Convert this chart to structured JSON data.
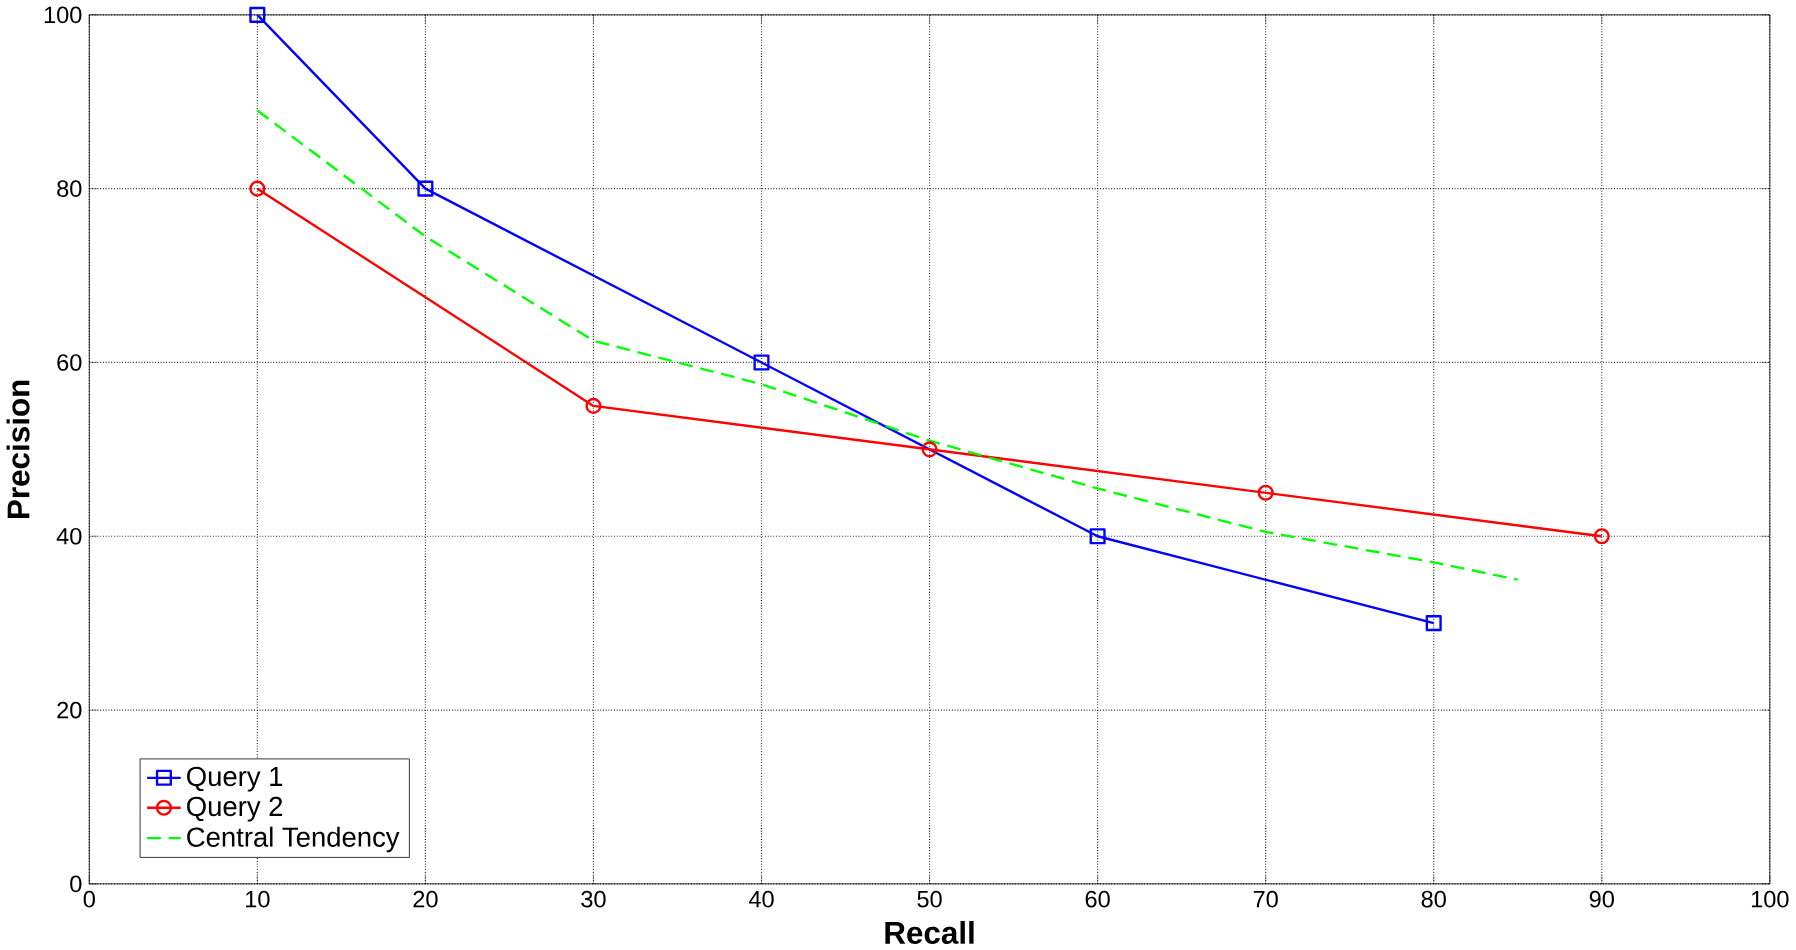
{
  "chart_data": {
    "type": "line",
    "xlabel": "Recall",
    "ylabel": "Precision",
    "xlim": [
      0,
      100
    ],
    "ylim": [
      0,
      100
    ],
    "xticks": [
      0,
      10,
      20,
      30,
      40,
      50,
      60,
      70,
      80,
      90,
      100
    ],
    "yticks": [
      0,
      20,
      40,
      60,
      80,
      100
    ],
    "grid": true,
    "legend": "bottom left",
    "series": [
      {
        "name": "Query 1",
        "color": "#0000ff",
        "marker": "square",
        "line_style": "solid",
        "x": [
          10,
          20,
          40,
          60,
          80
        ],
        "values": [
          100,
          80,
          60,
          40,
          30
        ]
      },
      {
        "name": "Query 2",
        "color": "#ff0000",
        "marker": "circle",
        "line_style": "solid",
        "x": [
          10,
          30,
          50,
          70,
          90
        ],
        "values": [
          80,
          55,
          50,
          45,
          40
        ]
      },
      {
        "name": "Central Tendency",
        "color": "#00ff00",
        "marker": "none",
        "line_style": "dashed",
        "x": [
          10,
          20,
          30,
          40,
          50,
          60,
          70,
          80,
          85
        ],
        "values": [
          89,
          74.5,
          62.5,
          57.5,
          51,
          45.5,
          40.5,
          37,
          35
        ]
      }
    ]
  }
}
